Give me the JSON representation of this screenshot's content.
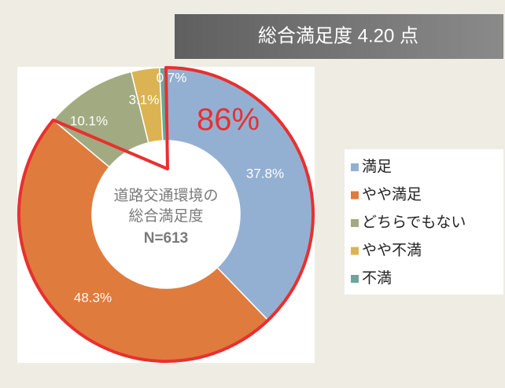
{
  "chart_data": {
    "type": "pie",
    "title": "総合満足度 4.20 点",
    "center_text": [
      "道路交通環境の",
      "総合満足度",
      "N=613"
    ],
    "annotation": "86%",
    "categories": [
      "満足",
      "やや満足",
      "どちらでもない",
      "やや不満",
      "不満"
    ],
    "values": [
      37.8,
      48.3,
      10.1,
      3.1,
      0.7
    ],
    "value_labels": [
      "37.8%",
      "48.3%",
      "10.1%",
      "3.1%",
      "0.7%"
    ],
    "colors": [
      "#93b0d2",
      "#df7b3d",
      "#a2aa81",
      "#dbb352",
      "#6aa799"
    ],
    "legend": "right"
  }
}
